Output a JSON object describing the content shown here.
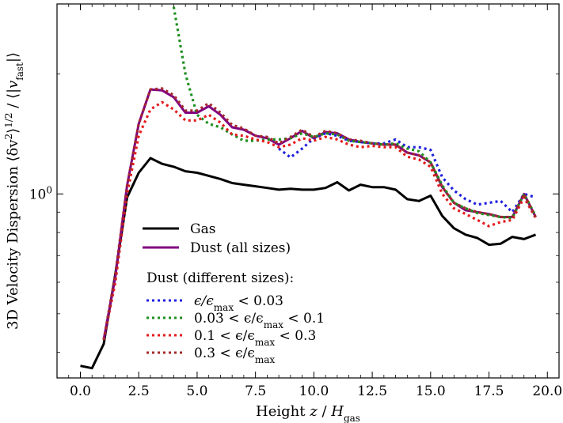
{
  "chart_data": {
    "type": "line",
    "xlabel": "Height z / H_gas",
    "xlabel_parts": {
      "prefix": "Height ",
      "var": "z",
      "sep": " / ",
      "sym": "H",
      "sub": "gas"
    },
    "ylabel": "3D Velocity Dispersion ⟨δv²⟩^1/2 / ⟨|v_fast|⟩",
    "ylabel_parts": {
      "prefix": "3D Velocity Dispersion ",
      "numer": "⟨δv",
      "sup": "2",
      "close": "⟩",
      "power": "1/2",
      "slash": " / ⟨|",
      "den": "v",
      "den_sub": "fast",
      "end": "|⟩"
    },
    "x_ticks": [
      0.0,
      2.5,
      5.0,
      7.5,
      10.0,
      12.5,
      15.0,
      17.5,
      20.0
    ],
    "x_tick_labels": [
      "0.0",
      "2.5",
      "5.0",
      "7.5",
      "10.0",
      "12.5",
      "15.0",
      "17.5",
      "20.0"
    ],
    "y_tick_labels": [
      {
        "value": 1.0,
        "label": "10",
        "exp": "0"
      }
    ],
    "y_scale": "log",
    "xlim": [
      -1.0,
      20.5
    ],
    "ylim": [
      0.345,
      3.0
    ],
    "legend": {
      "placement": "lower-left",
      "subtitle": "Dust (different sizes):"
    },
    "series": [
      {
        "name": "Gas",
        "color": "#000000",
        "style": "solid",
        "x": [
          0.0,
          0.5,
          1.0,
          1.5,
          2.0,
          2.5,
          3.0,
          3.5,
          4.0,
          4.5,
          5.0,
          5.5,
          6.0,
          6.5,
          7.0,
          7.5,
          8.0,
          8.5,
          9.0,
          9.5,
          10.0,
          10.5,
          11.0,
          11.5,
          12.0,
          12.5,
          13.0,
          13.5,
          14.0,
          14.5,
          15.0,
          15.5,
          16.0,
          16.5,
          17.0,
          17.5,
          18.0,
          18.5,
          19.0,
          19.5
        ],
        "y": [
          0.37,
          0.365,
          0.42,
          0.63,
          0.98,
          1.13,
          1.23,
          1.19,
          1.17,
          1.14,
          1.13,
          1.11,
          1.09,
          1.065,
          1.055,
          1.045,
          1.035,
          1.025,
          1.03,
          1.025,
          1.025,
          1.035,
          1.07,
          1.02,
          1.055,
          1.04,
          1.04,
          1.025,
          0.97,
          0.96,
          0.99,
          0.88,
          0.82,
          0.79,
          0.775,
          0.745,
          0.75,
          0.78,
          0.77,
          0.79
        ]
      },
      {
        "name": "Dust (all sizes)",
        "color": "#800080",
        "style": "solid",
        "x": [
          1.0,
          1.5,
          2.0,
          2.5,
          3.0,
          3.5,
          4.0,
          4.5,
          5.0,
          5.5,
          6.0,
          6.5,
          7.0,
          7.5,
          8.0,
          8.5,
          9.0,
          9.5,
          10.0,
          10.5,
          11.0,
          11.5,
          12.0,
          12.5,
          13.0,
          13.5,
          14.0,
          14.5,
          15.0,
          15.5,
          16.0,
          16.5,
          17.0,
          17.5,
          18.0,
          18.5,
          19.0,
          19.5
        ],
        "y": [
          0.43,
          0.62,
          1.05,
          1.5,
          1.83,
          1.82,
          1.75,
          1.6,
          1.6,
          1.66,
          1.58,
          1.47,
          1.45,
          1.4,
          1.38,
          1.33,
          1.38,
          1.44,
          1.38,
          1.43,
          1.42,
          1.37,
          1.35,
          1.34,
          1.33,
          1.33,
          1.27,
          1.25,
          1.2,
          1.04,
          0.95,
          0.91,
          0.9,
          0.89,
          0.875,
          0.875,
          1.0,
          0.875
        ]
      },
      {
        "name": "ϵ/ϵmax < 0.03",
        "label_parts": [
          "ϵ/ϵ",
          "max",
          " < 0.03"
        ],
        "color": "#1f1fdf",
        "style": "dotted",
        "x": [
          8.5,
          9.0,
          9.5,
          10.0,
          10.5,
          11.0,
          11.5,
          12.0,
          12.5,
          13.0,
          13.5,
          14.0,
          14.5,
          15.0,
          15.5,
          16.0,
          16.5,
          17.0,
          17.5,
          18.0,
          18.5,
          19.0,
          19.5
        ],
        "y": [
          1.3,
          1.235,
          1.3,
          1.38,
          1.42,
          1.4,
          1.36,
          1.35,
          1.34,
          1.34,
          1.37,
          1.31,
          1.31,
          1.29,
          1.1,
          1.02,
          0.97,
          0.94,
          0.95,
          0.96,
          0.9,
          1.0,
          0.98
        ]
      },
      {
        "name": "0.03 < ϵ/ϵmax < 0.1",
        "label_parts": [
          "0.03 < ϵ/ϵ",
          "max",
          " < 0.1"
        ],
        "color": "#1f8f1f",
        "style": "dotted",
        "x": [
          4.0,
          4.5,
          5.0,
          5.5,
          6.0,
          6.5,
          7.0,
          7.5,
          8.0,
          8.5,
          9.0,
          9.5,
          10.0,
          10.5,
          11.0,
          11.5,
          12.0,
          12.5,
          13.0,
          13.5,
          14.0,
          14.5,
          15.0,
          15.5,
          16.0,
          16.5,
          17.0,
          17.5,
          18.0,
          18.5,
          19.0,
          19.5
        ],
        "y": [
          2.95,
          2.0,
          1.58,
          1.5,
          1.47,
          1.41,
          1.36,
          1.36,
          1.37,
          1.37,
          1.38,
          1.42,
          1.39,
          1.42,
          1.41,
          1.36,
          1.35,
          1.34,
          1.33,
          1.34,
          1.3,
          1.28,
          1.2,
          1.05,
          0.95,
          0.92,
          0.895,
          0.885,
          0.875,
          0.87,
          1.0,
          0.88
        ]
      },
      {
        "name": "0.1 < ϵ/ϵmax < 0.3",
        "label_parts": [
          "0.1 < ϵ/ϵ",
          "max",
          " < 0.3"
        ],
        "color": "#e41a1c",
        "style": "dotted",
        "x": [
          1.0,
          1.5,
          2.0,
          2.5,
          3.0,
          3.5,
          4.0,
          4.5,
          5.0,
          5.5,
          6.0,
          6.5,
          7.0,
          7.5,
          8.0,
          8.5,
          9.0,
          9.5,
          10.0,
          10.5,
          11.0,
          11.5,
          12.0,
          12.5,
          13.0,
          13.5,
          14.0,
          14.5,
          15.0,
          15.5,
          16.0,
          16.5,
          17.0,
          17.5,
          18.0,
          18.5,
          19.0,
          19.5
        ],
        "y": [
          0.43,
          0.6,
          1.0,
          1.4,
          1.63,
          1.7,
          1.63,
          1.53,
          1.53,
          1.58,
          1.51,
          1.41,
          1.4,
          1.37,
          1.35,
          1.31,
          1.33,
          1.38,
          1.36,
          1.39,
          1.37,
          1.33,
          1.31,
          1.32,
          1.31,
          1.31,
          1.24,
          1.22,
          1.17,
          1.0,
          0.92,
          0.89,
          0.86,
          0.83,
          0.85,
          0.86,
          0.98,
          0.87
        ]
      },
      {
        "name": "0.3 < ϵ/ϵmax",
        "label_parts": [
          "0.3 < ϵ/ϵ",
          "max",
          ""
        ],
        "color": "#a52a2a",
        "style": "dotted",
        "x": [
          1.0,
          1.5,
          2.0,
          2.5,
          3.0,
          3.5,
          4.0,
          4.5,
          5.0,
          5.5,
          6.0,
          6.5,
          7.0,
          7.5,
          8.0,
          8.5,
          9.0,
          9.5,
          10.0,
          10.5,
          11.0,
          11.5,
          12.0,
          12.5,
          13.0,
          13.5,
          14.0,
          14.5,
          15.0,
          15.5,
          16.0,
          16.5,
          17.0,
          17.5,
          18.0,
          18.5,
          19.0,
          19.5
        ],
        "y": [
          0.43,
          0.63,
          1.05,
          1.5,
          1.83,
          1.84,
          1.77,
          1.62,
          1.62,
          1.69,
          1.6,
          1.49,
          1.46,
          1.4,
          1.39,
          1.34,
          1.39,
          1.45,
          1.39,
          1.44,
          1.42,
          1.37,
          1.36,
          1.34,
          1.33,
          1.33,
          1.27,
          1.25,
          1.2,
          1.04,
          0.95,
          0.92,
          0.9,
          0.89,
          0.875,
          0.875,
          1.0,
          0.875
        ]
      }
    ]
  }
}
